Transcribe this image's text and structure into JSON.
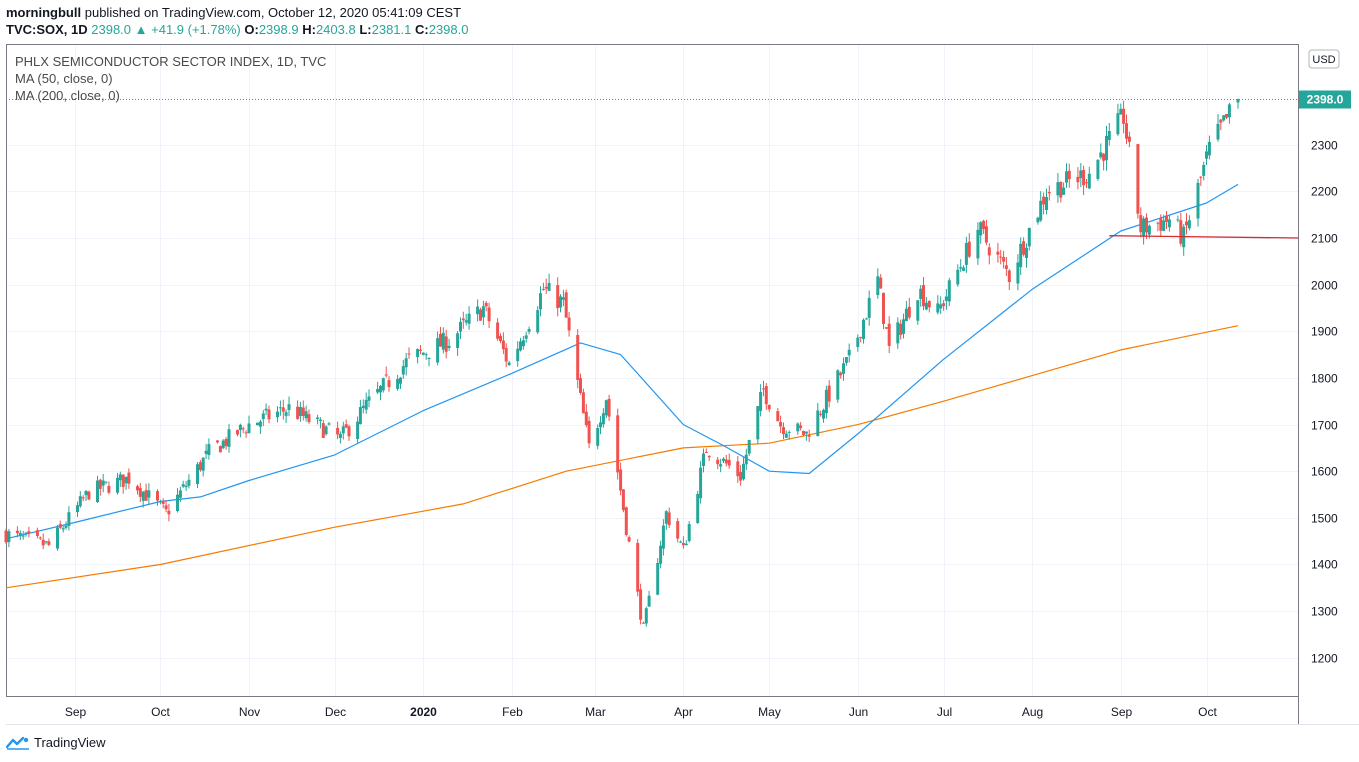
{
  "header": {
    "author": "morningbull",
    "published_text": "published on TradingView.com, October 12, 2020 05:41:09 CEST",
    "symbol": "TVC:SOX, 1D",
    "last": "2398.0",
    "change": "▲ +41.9 (+1.78%)",
    "open_label": "O:",
    "open": "2398.9",
    "high_label": "H:",
    "high": "2403.8",
    "low_label": "L:",
    "low": "2381.1",
    "close_label": "C:",
    "close": "2398.0"
  },
  "legend": {
    "title": "PHLX SEMICONDUCTOR SECTOR INDEX, 1D, TVC",
    "ma50": "MA (50, close, 0)",
    "ma200": "MA (200, close, 0)"
  },
  "currency_badge": "USD",
  "last_price_label": "2398.0",
  "brand": "TradingView",
  "colors": {
    "up": "#26a69a",
    "down": "#ef5350",
    "ma50": "#2196f3",
    "ma200": "#f57c00",
    "support": "#d32f2f",
    "last_price": "#26a69a"
  },
  "chart_data": {
    "type": "candlestick",
    "y_axis_ticks": [
      1200,
      1300,
      1400,
      1500,
      1600,
      1700,
      1800,
      1900,
      2000,
      2100,
      2200,
      2300
    ],
    "ylim": [
      1118,
      2516
    ],
    "x_axis_labels": [
      {
        "label": "Sep",
        "date": "2019-09-01"
      },
      {
        "label": "Oct",
        "date": "2019-10-01"
      },
      {
        "label": "Nov",
        "date": "2019-11-01"
      },
      {
        "label": "Dec",
        "date": "2019-12-01"
      },
      {
        "label": "2020",
        "date": "2020-01-01"
      },
      {
        "label": "Feb",
        "date": "2020-02-01"
      },
      {
        "label": "Mar",
        "date": "2020-03-01"
      },
      {
        "label": "Apr",
        "date": "2020-04-01"
      },
      {
        "label": "May",
        "date": "2020-05-01"
      },
      {
        "label": "Jun",
        "date": "2020-06-01"
      },
      {
        "label": "Jul",
        "date": "2020-07-01"
      },
      {
        "label": "Aug",
        "date": "2020-08-01"
      },
      {
        "label": "Sep",
        "date": "2020-09-01"
      },
      {
        "label": "Oct",
        "date": "2020-10-01"
      }
    ],
    "xlim": [
      "2019-08-08",
      "2020-11-02"
    ],
    "last_price": 2398.0,
    "close_keypoints": [
      [
        "2019-08-08",
        1465
      ],
      [
        "2019-08-23",
        1440
      ],
      [
        "2019-09-06",
        1555
      ],
      [
        "2019-09-20",
        1585
      ],
      [
        "2019-10-03",
        1510
      ],
      [
        "2019-10-18",
        1640
      ],
      [
        "2019-11-01",
        1700
      ],
      [
        "2019-11-15",
        1735
      ],
      [
        "2019-12-03",
        1670
      ],
      [
        "2019-12-12",
        1740
      ],
      [
        "2019-12-27",
        1840
      ],
      [
        "2020-01-10",
        1880
      ],
      [
        "2020-01-22",
        1950
      ],
      [
        "2020-01-31",
        1830
      ],
      [
        "2020-02-12",
        1990
      ],
      [
        "2020-02-19",
        1960
      ],
      [
        "2020-02-28",
        1650
      ],
      [
        "2020-03-05",
        1760
      ],
      [
        "2020-03-12",
        1480
      ],
      [
        "2020-03-18",
        1260
      ],
      [
        "2020-03-26",
        1510
      ],
      [
        "2020-04-01",
        1430
      ],
      [
        "2020-04-09",
        1650
      ],
      [
        "2020-04-21",
        1590
      ],
      [
        "2020-04-29",
        1775
      ],
      [
        "2020-05-05",
        1700
      ],
      [
        "2020-05-14",
        1680
      ],
      [
        "2020-05-29",
        1840
      ],
      [
        "2020-06-08",
        2010
      ],
      [
        "2020-06-12",
        1860
      ],
      [
        "2020-06-22",
        1990
      ],
      [
        "2020-06-29",
        1940
      ],
      [
        "2020-07-13",
        2120
      ],
      [
        "2020-07-24",
        2020
      ],
      [
        "2020-08-06",
        2200
      ],
      [
        "2020-08-21",
        2240
      ],
      [
        "2020-09-02",
        2360
      ],
      [
        "2020-09-08",
        2120
      ],
      [
        "2020-09-18",
        2140
      ],
      [
        "2020-09-23",
        2100
      ],
      [
        "2020-10-02",
        2290
      ],
      [
        "2020-10-12",
        2398
      ]
    ],
    "ma50": [
      [
        "2019-08-08",
        1455
      ],
      [
        "2019-09-01",
        1490
      ],
      [
        "2019-10-01",
        1535
      ],
      [
        "2019-10-15",
        1545
      ],
      [
        "2019-11-01",
        1580
      ],
      [
        "2019-12-01",
        1635
      ],
      [
        "2020-01-01",
        1730
      ],
      [
        "2020-02-01",
        1810
      ],
      [
        "2020-02-25",
        1875
      ],
      [
        "2020-03-10",
        1850
      ],
      [
        "2020-04-01",
        1700
      ],
      [
        "2020-04-15",
        1655
      ],
      [
        "2020-05-01",
        1600
      ],
      [
        "2020-05-15",
        1595
      ],
      [
        "2020-06-01",
        1680
      ],
      [
        "2020-07-01",
        1840
      ],
      [
        "2020-08-01",
        1990
      ],
      [
        "2020-09-01",
        2115
      ],
      [
        "2020-10-01",
        2175
      ],
      [
        "2020-10-12",
        2215
      ]
    ],
    "ma200": [
      [
        "2019-08-08",
        1350
      ],
      [
        "2019-10-01",
        1400
      ],
      [
        "2019-12-01",
        1480
      ],
      [
        "2020-01-15",
        1530
      ],
      [
        "2020-02-20",
        1600
      ],
      [
        "2020-04-01",
        1650
      ],
      [
        "2020-05-01",
        1660
      ],
      [
        "2020-06-01",
        1700
      ],
      [
        "2020-07-01",
        1750
      ],
      [
        "2020-08-01",
        1805
      ],
      [
        "2020-09-01",
        1860
      ],
      [
        "2020-10-12",
        1912
      ]
    ],
    "support_line": {
      "from": [
        "2020-08-28",
        2105
      ],
      "to": [
        "2020-11-02",
        2100
      ]
    }
  }
}
